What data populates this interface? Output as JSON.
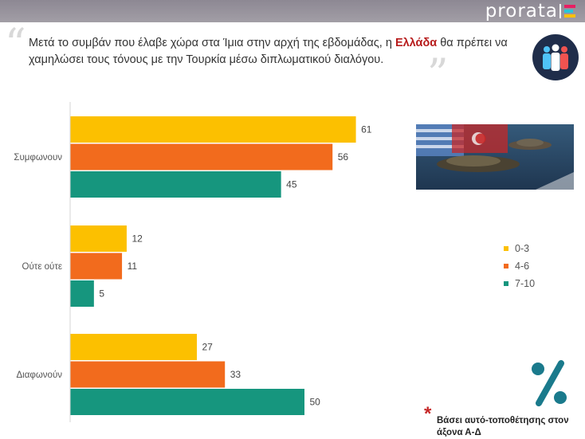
{
  "header": {
    "brand": "prorata",
    "brand_colors": [
      "#e91e63",
      "#26c6da",
      "#ffc107"
    ]
  },
  "question": {
    "before": "Μετά το συμβάν που έλαβε χώρα στα Ίμια στην αρχή της εβδομάδας, η ",
    "highlight": "Ελλάδα",
    "after": " θα πρέπει να χαμηλώσει τους τόνους με την Τουρκία μέσω διπλωματικού διαλόγου."
  },
  "chart_data": {
    "type": "bar",
    "orientation": "horizontal",
    "categories": [
      "Συμφωνουν",
      "Ούτε ούτε",
      "Διαφωνούν"
    ],
    "series": [
      {
        "name": "0-3",
        "color": "#fcc000",
        "values": [
          61,
          12,
          27
        ]
      },
      {
        "name": "4-6",
        "color": "#f26b1d",
        "values": [
          56,
          11,
          33
        ]
      },
      {
        "name": "7-10",
        "color": "#16967e",
        "values": [
          45,
          5,
          50
        ]
      }
    ],
    "xlim": [
      0,
      70
    ],
    "legend": "right"
  },
  "footnote": {
    "star": "*",
    "text": "Βάσει αυτό-τοποθέτησης στον άξονα Α-Δ"
  }
}
